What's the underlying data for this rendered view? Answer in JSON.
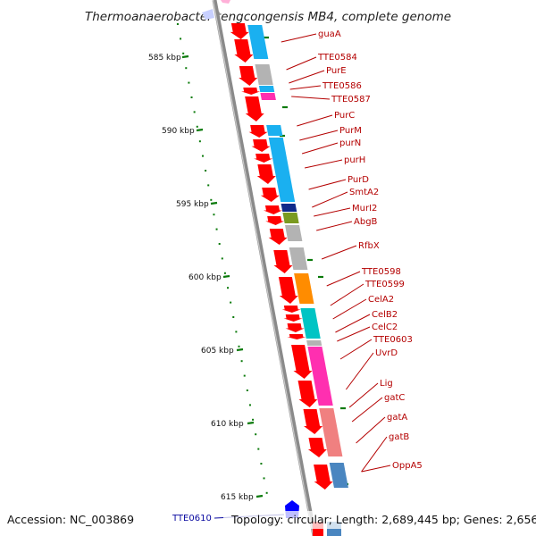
{
  "title": "Thermoanaerobacter tengcongensis MB4, complete genome",
  "footer": {
    "accession": "Accession: NC_003869",
    "topology": "Topology: circular; Length: 2,689,445 bp; Genes: 2,656"
  },
  "scale": {
    "ticks": [
      "585 kbp",
      "590 kbp",
      "595 kbp",
      "600 kbp",
      "605 kbp",
      "610 kbp",
      "615 kbp"
    ]
  },
  "genes": [
    {
      "label": "guaA",
      "color": "#b40000"
    },
    {
      "label": "TTE0584",
      "color": "#b40000"
    },
    {
      "label": "PurE",
      "color": "#b40000"
    },
    {
      "label": "TTE0586",
      "color": "#b40000"
    },
    {
      "label": "TTE0587",
      "color": "#b40000"
    },
    {
      "label": "PurC",
      "color": "#b40000"
    },
    {
      "label": "PurM",
      "color": "#b40000"
    },
    {
      "label": "purN",
      "color": "#b40000"
    },
    {
      "label": "purH",
      "color": "#b40000"
    },
    {
      "label": "PurD",
      "color": "#b40000"
    },
    {
      "label": "SmtA2",
      "color": "#b40000"
    },
    {
      "label": "MurI2",
      "color": "#b40000"
    },
    {
      "label": "AbgB",
      "color": "#b40000"
    },
    {
      "label": "RfbX",
      "color": "#b40000"
    },
    {
      "label": "TTE0598",
      "color": "#b40000"
    },
    {
      "label": "TTE0599",
      "color": "#b40000"
    },
    {
      "label": "CelA2",
      "color": "#b40000"
    },
    {
      "label": "CelB2",
      "color": "#b40000"
    },
    {
      "label": "CelC2",
      "color": "#b40000"
    },
    {
      "label": "TTE0603",
      "color": "#b40000"
    },
    {
      "label": "UvrD",
      "color": "#b40000"
    },
    {
      "label": "Lig",
      "color": "#b40000"
    },
    {
      "label": "gatC",
      "color": "#b40000"
    },
    {
      "label": "gatA",
      "color": "#b40000"
    },
    {
      "label": "gatB",
      "color": "#b40000"
    },
    {
      "label": "OppA5",
      "color": "#b40000"
    }
  ],
  "reverse_gene": {
    "label": "TTE0610",
    "color": "#0a0aa0"
  },
  "colors": {
    "forward_gene": "#ff0000",
    "reverse_gene": "#0000ff",
    "backbone": "#8a8a8a",
    "scale": "#0a7a0a",
    "cog_categories": [
      "#1ab0f0",
      "#b3b3b3",
      "#ff2fb0",
      "#ff8c00",
      "#00c4c4",
      "#7a9a20",
      "#102a8a",
      "#f08080",
      "#4a86c0"
    ]
  }
}
